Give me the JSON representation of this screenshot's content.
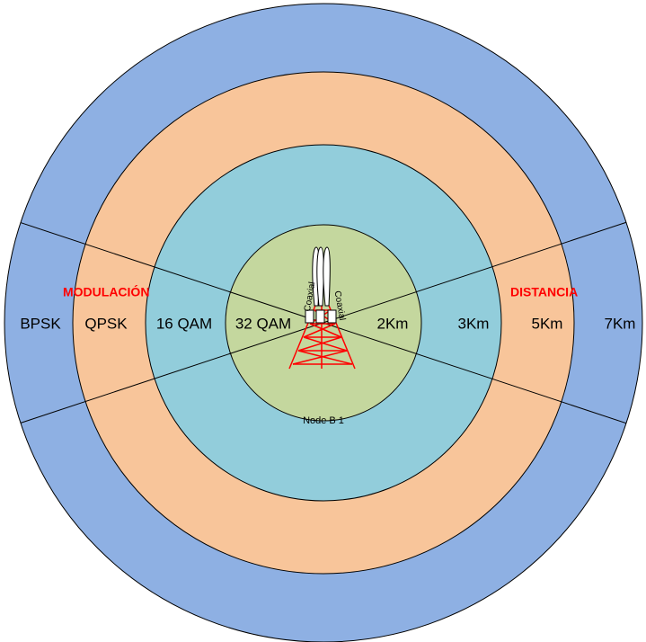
{
  "labels": {
    "modulation_title": "MODULACIÓN",
    "distance_title": "DISTANCIA"
  },
  "modulations": [
    "BPSK",
    "QPSK",
    "16 QAM",
    "32 QAM"
  ],
  "distances": [
    "2Km",
    "3Km",
    "5Km",
    "7Km"
  ],
  "node": "Node B 1",
  "cables": [
    "Coaxial",
    "Coaxial"
  ]
}
